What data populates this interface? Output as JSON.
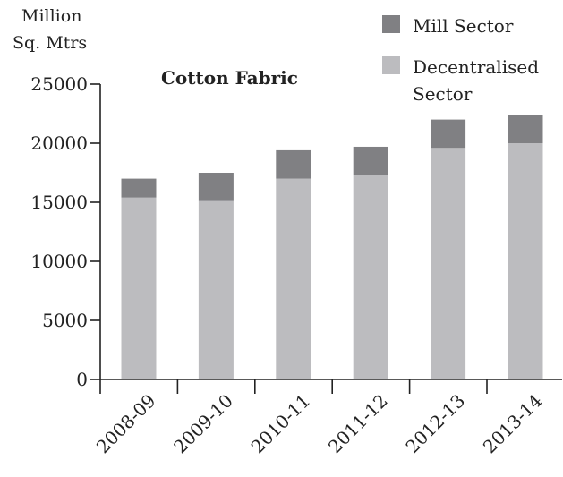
{
  "chart_data": {
    "type": "bar",
    "stacked": true,
    "title": "Cotton Fabric",
    "ylabel_line1": "Million",
    "ylabel_line2": "Sq. Mtrs",
    "xlabel": "",
    "categories": [
      "2008-09",
      "2009-10",
      "2010-11",
      "2011-12",
      "2012-13",
      "2013-14"
    ],
    "series": [
      {
        "name": "Decentralised Sector",
        "color": "#bcbcbf",
        "values": [
          15400,
          15100,
          17000,
          17300,
          19600,
          20000
        ]
      },
      {
        "name": "Mill Sector",
        "color": "#808083",
        "values": [
          1600,
          2400,
          2400,
          2400,
          2400,
          2400
        ]
      }
    ],
    "yticks": [
      "0",
      "5000",
      "10000",
      "15000",
      "20000",
      "25000"
    ],
    "ylim": [
      0,
      25000
    ],
    "grid": false,
    "legend_position": "top-right"
  }
}
